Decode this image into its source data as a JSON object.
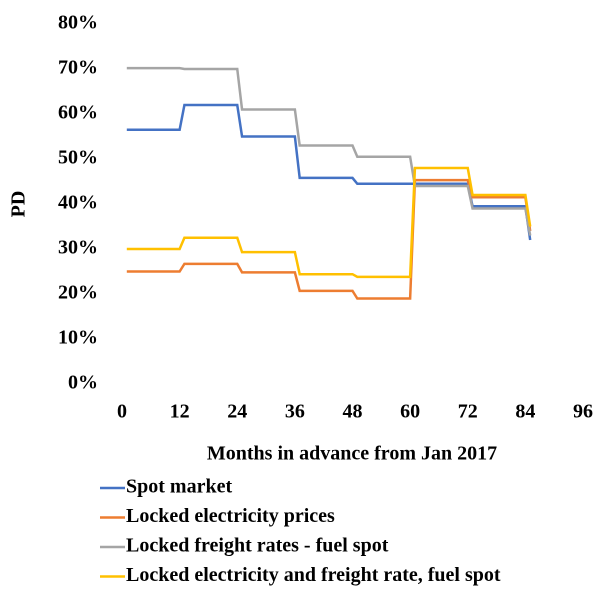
{
  "chart_data": {
    "type": "line",
    "x_label": "Months in advance from Jan 2017",
    "y_label": "PD",
    "x": [
      1,
      12,
      13,
      24,
      25,
      36,
      37,
      48,
      49,
      60,
      61,
      72,
      73,
      84,
      85
    ],
    "series": [
      {
        "name": "Spot market",
        "color": "#4472c4",
        "values": [
          56.5,
          56.5,
          62,
          62,
          55,
          55,
          45.8,
          45.8,
          44.5,
          44.5,
          44.5,
          44.5,
          39.5,
          39.5,
          32
        ]
      },
      {
        "name": "Locked electricity prices",
        "color": "#ed7d31",
        "values": [
          25,
          25,
          26.7,
          26.7,
          24.8,
          24.8,
          20.7,
          20.7,
          19,
          19,
          45.3,
          45.3,
          41.5,
          41.5,
          34
        ]
      },
      {
        "name": "Locked freight rates - fuel spot",
        "color": "#a5a5a5",
        "values": [
          70.2,
          70.2,
          70,
          70,
          61,
          61,
          53,
          53,
          50.5,
          50.5,
          44,
          44,
          39,
          39,
          33
        ]
      },
      {
        "name": "Locked electricity and freight rate, fuel spot",
        "color": "#ffc000",
        "values": [
          30,
          30,
          32.5,
          32.5,
          29.3,
          29.3,
          24.4,
          24.4,
          23.8,
          23.8,
          48,
          48,
          42,
          42,
          35
        ]
      }
    ],
    "xlim": [
      0,
      96
    ],
    "xticks": [
      0,
      12,
      24,
      36,
      48,
      60,
      72,
      84,
      96
    ],
    "ylim": [
      0,
      80
    ],
    "yticks": [
      {
        "value": 0,
        "label": "0%"
      },
      {
        "value": 10,
        "label": "10%"
      },
      {
        "value": 20,
        "label": "20%"
      },
      {
        "value": 30,
        "label": "30%"
      },
      {
        "value": 40,
        "label": "40%"
      },
      {
        "value": 50,
        "label": "50%"
      },
      {
        "value": 60,
        "label": "60%"
      },
      {
        "value": 70,
        "label": "70%"
      },
      {
        "value": 80,
        "label": "80%"
      }
    ],
    "legend": "bottom"
  }
}
